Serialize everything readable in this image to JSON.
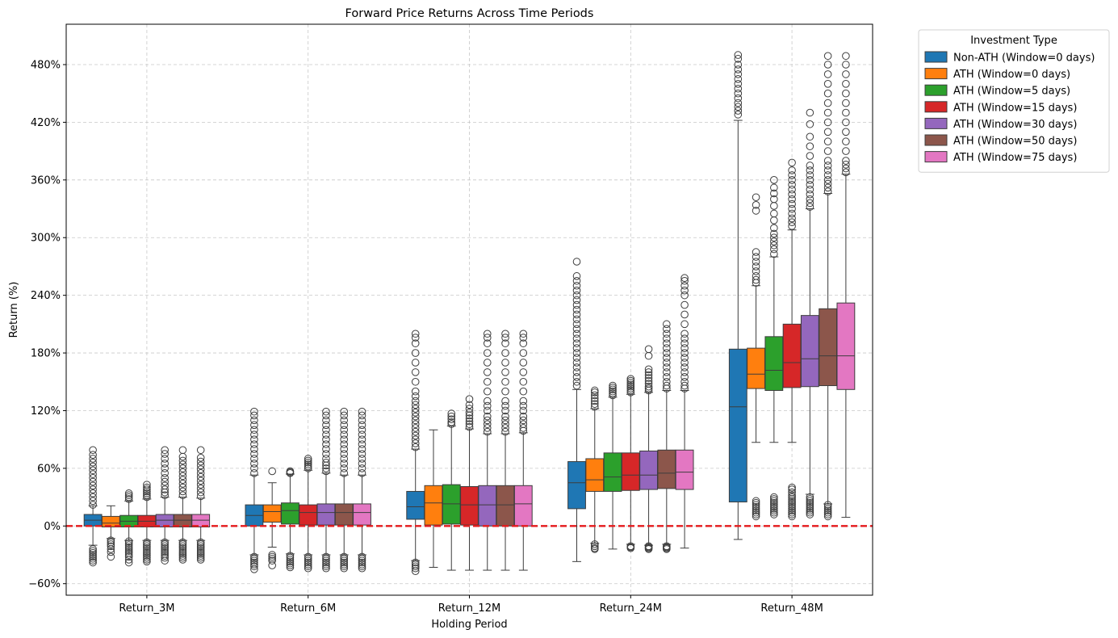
{
  "chart_data": {
    "type": "box",
    "title": "Forward Price Returns Across Time Periods",
    "xlabel": "Holding Period",
    "ylabel": "Return (%)",
    "categories": [
      "Return_3M",
      "Return_6M",
      "Return_12M",
      "Return_24M",
      "Return_48M"
    ],
    "ylim": [
      -72,
      522
    ],
    "yticks": [
      -60,
      0,
      60,
      120,
      180,
      240,
      300,
      360,
      420,
      480
    ],
    "ytick_labels": [
      "−60%",
      "0%",
      "60%",
      "120%",
      "180%",
      "240%",
      "300%",
      "360%",
      "420%",
      "480%"
    ],
    "grid": true,
    "legend": {
      "title": "Investment Type",
      "placement": "outside-top-right"
    },
    "reference_line": {
      "y": 0,
      "color": "#e41a1c",
      "style": "dashed"
    },
    "series": [
      {
        "name": "Non-ATH (Window=0 days)",
        "color": "#1f77b4",
        "boxes": [
          {
            "whislo": -20,
            "q1": 0,
            "med": 6,
            "q3": 12,
            "whishi": 21,
            "fliers": [
              22,
              26,
              30,
              34,
              38,
              42,
              46,
              50,
              54,
              58,
              62,
              66,
              70,
              74,
              79,
              -24,
              -26,
              -28,
              -30,
              -32,
              -34,
              -36,
              -38
            ]
          },
          {
            "whislo": -30,
            "q1": 0,
            "med": 11,
            "q3": 22,
            "whishi": 53,
            "fliers": [
              55,
              60,
              65,
              70,
              75,
              80,
              85,
              90,
              95,
              100,
              105,
              110,
              115,
              119,
              -32,
              -34,
              -36,
              -38,
              -40,
              -42,
              -45
            ]
          },
          {
            "whislo": -36,
            "q1": 7,
            "med": 20,
            "q3": 36,
            "whishi": 80,
            "fliers": [
              82,
              86,
              90,
              94,
              98,
              102,
              106,
              110,
              114,
              118,
              122,
              126,
              130,
              135,
              140,
              150,
              160,
              170,
              180,
              190,
              196,
              200,
              -38,
              -40,
              -42,
              -44,
              -47
            ]
          },
          {
            "whislo": -37,
            "q1": 18,
            "med": 45,
            "q3": 67,
            "whishi": 142,
            "fliers": [
              146,
              150,
              155,
              160,
              165,
              170,
              175,
              180,
              185,
              190,
              195,
              200,
              205,
              210,
              215,
              220,
              225,
              230,
              235,
              240,
              245,
              250,
              255,
              260,
              275
            ]
          },
          {
            "whislo": -14,
            "q1": 25,
            "med": 124,
            "q3": 184,
            "whishi": 422,
            "fliers": [
              428,
              432,
              436,
              440,
              445,
              450,
              455,
              460,
              465,
              470,
              475,
              480,
              486,
              490
            ]
          }
        ]
      },
      {
        "name": "ATH (Window=0 days)",
        "color": "#ff7f0e",
        "boxes": [
          {
            "whislo": -13,
            "q1": -1,
            "med": 3,
            "q3": 10,
            "whishi": 21,
            "fliers": [
              -15,
              -17,
              -19,
              -21,
              -24,
              -27,
              -32
            ]
          },
          {
            "whislo": -22,
            "q1": 4,
            "med": 15,
            "q3": 22,
            "whishi": 45,
            "fliers": [
              57,
              -30,
              -32,
              -34,
              -36,
              -41
            ]
          },
          {
            "whislo": -43,
            "q1": 1,
            "med": 24,
            "q3": 42,
            "whishi": 100,
            "fliers": []
          },
          {
            "whislo": -18,
            "q1": 36,
            "med": 48,
            "q3": 70,
            "whishi": 122,
            "fliers": [
              124,
              127,
              130,
              133,
              136,
              139,
              141,
              -19,
              -21,
              -23,
              -24
            ]
          },
          {
            "whislo": 87,
            "q1": 143,
            "med": 158,
            "q3": 185,
            "whishi": 250,
            "fliers": [
              10,
              12,
              14,
              16,
              18,
              20,
              22,
              24,
              26,
              253,
              256,
              260,
              265,
              270,
              275,
              280,
              285,
              328,
              334,
              342
            ]
          }
        ]
      },
      {
        "name": "ATH (Window=5 days)",
        "color": "#2ca02c",
        "boxes": [
          {
            "whislo": -15,
            "q1": -1,
            "med": 5,
            "q3": 11,
            "whishi": 26,
            "fliers": [
              28,
              30,
              32,
              34,
              -16,
              -18,
              -20,
              -22,
              -24,
              -26,
              -28,
              -30,
              -32,
              -35,
              -38
            ]
          },
          {
            "whislo": -29,
            "q1": 2,
            "med": 16,
            "q3": 24,
            "whishi": 54,
            "fliers": [
              55,
              56,
              57,
              -31,
              -33,
              -35,
              -37,
              -39,
              -41,
              -43
            ]
          },
          {
            "whislo": -46,
            "q1": 2,
            "med": 23,
            "q3": 43,
            "whishi": 104,
            "fliers": [
              106,
              108,
              111,
              114,
              117
            ]
          },
          {
            "whislo": -24,
            "q1": 36,
            "med": 51,
            "q3": 76,
            "whishi": 134,
            "fliers": [
              136,
              138,
              140,
              142,
              144,
              146
            ]
          },
          {
            "whislo": 87,
            "q1": 141,
            "med": 162,
            "q3": 197,
            "whishi": 280,
            "fliers": [
              12,
              14,
              16,
              18,
              20,
              22,
              24,
              26,
              28,
              30,
              283,
              288,
              292,
              296,
              300,
              304,
              310,
              318,
              325,
              333,
              340,
              346,
              352,
              360
            ]
          }
        ]
      },
      {
        "name": "ATH (Window=15 days)",
        "color": "#d62728",
        "boxes": [
          {
            "whislo": -15,
            "q1": -1,
            "med": 5,
            "q3": 11,
            "whishi": 28,
            "fliers": [
              30,
              32,
              34,
              36,
              38,
              40,
              43,
              -17,
              -19,
              -21,
              -23,
              -25,
              -27,
              -29,
              -31,
              -33,
              -35,
              -37
            ]
          },
          {
            "whislo": -30,
            "q1": 1,
            "med": 14,
            "q3": 22,
            "whishi": 58,
            "fliers": [
              60,
              62,
              64,
              66,
              68,
              70,
              -32,
              -34,
              -36,
              -38,
              -40,
              -42,
              -44
            ]
          },
          {
            "whislo": -46,
            "q1": 1,
            "med": 22,
            "q3": 41,
            "whishi": 101,
            "fliers": [
              103,
              106,
              109,
              112,
              115,
              118,
              122,
              126,
              132
            ]
          },
          {
            "whislo": -19,
            "q1": 37,
            "med": 53,
            "q3": 76,
            "whishi": 137,
            "fliers": [
              139,
              141,
              143,
              145,
              147,
              149,
              151,
              153,
              -21,
              -22,
              -23
            ]
          },
          {
            "whislo": 87,
            "q1": 144,
            "med": 170,
            "q3": 210,
            "whishi": 308,
            "fliers": [
              10,
              12,
              14,
              16,
              18,
              20,
              22,
              24,
              26,
              28,
              30,
              32,
              35,
              38,
              40,
              312,
              316,
              320,
              325,
              330,
              335,
              340,
              345,
              350,
              355,
              360,
              365,
              370,
              378
            ]
          }
        ]
      },
      {
        "name": "ATH (Window=30 days)",
        "color": "#9467bd",
        "boxes": [
          {
            "whislo": -15,
            "q1": -1,
            "med": 6,
            "q3": 12,
            "whishi": 30,
            "fliers": [
              32,
              35,
              38,
              42,
              46,
              50,
              55,
              60,
              65,
              70,
              75,
              79,
              -17,
              -19,
              -21,
              -23,
              -25,
              -27,
              -29,
              -31,
              -33,
              -36
            ]
          },
          {
            "whislo": -30,
            "q1": 1,
            "med": 14,
            "q3": 23,
            "whishi": 55,
            "fliers": [
              57,
              60,
              63,
              66,
              70,
              75,
              80,
              85,
              90,
              95,
              100,
              105,
              110,
              115,
              119,
              -32,
              -34,
              -36,
              -38,
              -40,
              -42,
              -44
            ]
          },
          {
            "whislo": -46,
            "q1": 0,
            "med": 22,
            "q3": 42,
            "whishi": 96,
            "fliers": [
              98,
              102,
              106,
              110,
              114,
              120,
              125,
              130,
              140,
              150,
              160,
              170,
              180,
              190,
              196,
              200
            ]
          },
          {
            "whislo": -20,
            "q1": 38,
            "med": 53,
            "q3": 78,
            "whishi": 139,
            "fliers": [
              141,
              143,
              145,
              148,
              151,
              154,
              157,
              160,
              163,
              177,
              184,
              -21,
              -22,
              -23,
              -24
            ]
          },
          {
            "whislo": 33,
            "q1": 145,
            "med": 174,
            "q3": 219,
            "whishi": 330,
            "fliers": [
              12,
              14,
              16,
              18,
              20,
              22,
              24,
              26,
              28,
              30,
              332,
              336,
              340,
              345,
              350,
              355,
              360,
              365,
              370,
              375,
              385,
              395,
              405,
              418,
              430
            ]
          }
        ]
      },
      {
        "name": "ATH (Window=50 days)",
        "color": "#8c564b",
        "boxes": [
          {
            "whislo": -15,
            "q1": -1,
            "med": 6,
            "q3": 12,
            "whishi": 30,
            "fliers": [
              32,
              36,
              40,
              44,
              48,
              52,
              56,
              60,
              64,
              68,
              72,
              79,
              -17,
              -19,
              -21,
              -23,
              -25,
              -27,
              -29,
              -31,
              -33,
              -35
            ]
          },
          {
            "whislo": -30,
            "q1": 1,
            "med": 14,
            "q3": 23,
            "whishi": 53,
            "fliers": [
              55,
              60,
              65,
              70,
              75,
              80,
              85,
              90,
              95,
              100,
              105,
              110,
              115,
              119,
              -32,
              -34,
              -36,
              -38,
              -40,
              -42,
              -44
            ]
          },
          {
            "whislo": -46,
            "q1": 0,
            "med": 22,
            "q3": 42,
            "whishi": 96,
            "fliers": [
              98,
              102,
              106,
              110,
              114,
              120,
              125,
              130,
              140,
              150,
              160,
              170,
              180,
              190,
              196,
              200
            ]
          },
          {
            "whislo": -19,
            "q1": 39,
            "med": 55,
            "q3": 79,
            "whishi": 141,
            "fliers": [
              143,
              146,
              150,
              155,
              160,
              165,
              170,
              175,
              180,
              185,
              190,
              195,
              200,
              205,
              210,
              -21,
              -22,
              -23,
              -24
            ]
          },
          {
            "whislo": 23,
            "q1": 146,
            "med": 177,
            "q3": 226,
            "whishi": 346,
            "fliers": [
              10,
              12,
              14,
              16,
              18,
              20,
              22,
              348,
              352,
              356,
              360,
              365,
              370,
              375,
              380,
              390,
              400,
              410,
              420,
              430,
              440,
              450,
              460,
              470,
              480,
              489
            ]
          }
        ]
      },
      {
        "name": "ATH (Window=75 days)",
        "color": "#e377c2",
        "boxes": [
          {
            "whislo": -15,
            "q1": -1,
            "med": 6,
            "q3": 12,
            "whishi": 29,
            "fliers": [
              31,
              35,
              39,
              43,
              47,
              51,
              55,
              59,
              63,
              67,
              71,
              79,
              -17,
              -19,
              -21,
              -23,
              -25,
              -27,
              -29,
              -31,
              -33,
              -35
            ]
          },
          {
            "whislo": -30,
            "q1": 1,
            "med": 14,
            "q3": 23,
            "whishi": 53,
            "fliers": [
              55,
              60,
              65,
              70,
              75,
              80,
              85,
              90,
              95,
              100,
              105,
              110,
              115,
              119,
              -32,
              -34,
              -36,
              -38,
              -40,
              -42,
              -44
            ]
          },
          {
            "whislo": -46,
            "q1": 0,
            "med": 23,
            "q3": 42,
            "whishi": 97,
            "fliers": [
              99,
              102,
              106,
              110,
              114,
              120,
              125,
              130,
              140,
              150,
              160,
              170,
              180,
              190,
              196,
              200
            ]
          },
          {
            "whislo": -23,
            "q1": 38,
            "med": 56,
            "q3": 79,
            "whishi": 141,
            "fliers": [
              143,
              146,
              150,
              155,
              160,
              165,
              170,
              175,
              180,
              185,
              190,
              195,
              200,
              210,
              220,
              230,
              240,
              245,
              250,
              255,
              258
            ]
          },
          {
            "whislo": 9,
            "q1": 142,
            "med": 177,
            "q3": 232,
            "whishi": 366,
            "fliers": [
              368,
              372,
              376,
              380,
              390,
              400,
              410,
              420,
              430,
              440,
              450,
              460,
              470,
              480,
              489
            ]
          }
        ]
      }
    ]
  }
}
